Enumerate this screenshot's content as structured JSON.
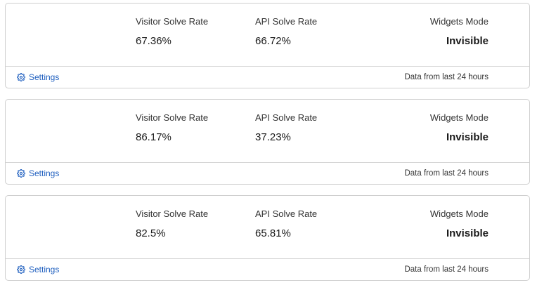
{
  "cards": [
    {
      "visitor_label": "Visitor Solve Rate",
      "visitor_value": "67.36%",
      "api_label": "API Solve Rate",
      "api_value": "66.72%",
      "mode_label": "Widgets Mode",
      "mode_value": "Invisible",
      "settings_label": "Settings",
      "footer_note": "Data from last 24 hours"
    },
    {
      "visitor_label": "Visitor Solve Rate",
      "visitor_value": "86.17%",
      "api_label": "API Solve Rate",
      "api_value": "37.23%",
      "mode_label": "Widgets Mode",
      "mode_value": "Invisible",
      "settings_label": "Settings",
      "footer_note": "Data from last 24 hours"
    },
    {
      "visitor_label": "Visitor Solve Rate",
      "visitor_value": "82.5%",
      "api_label": "API Solve Rate",
      "api_value": "65.81%",
      "mode_label": "Widgets Mode",
      "mode_value": "Invisible",
      "settings_label": "Settings",
      "footer_note": "Data from last 24 hours"
    }
  ],
  "icons": {
    "settings": "gear-icon"
  },
  "colors": {
    "link": "#1f5fbf",
    "border": "#cfcfcf"
  }
}
